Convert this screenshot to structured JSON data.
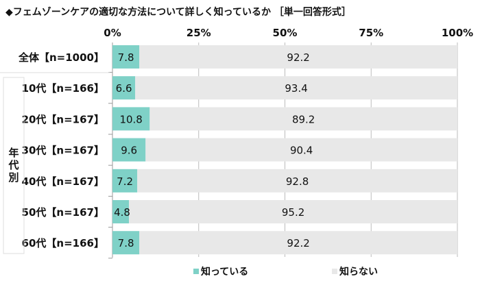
{
  "chart_data": {
    "type": "bar",
    "stacked": true,
    "orientation": "horizontal",
    "title": "◆フェムゾーンケアの適切な方法について詳しく知っているか ［単一回答形式］",
    "categories": [
      "全体【n=1000】",
      "10代【n=166】",
      "20代【n=167】",
      "30代【n=167】",
      "40代【n=167】",
      "50代【n=167】",
      "60代【n=166】"
    ],
    "group_label": "年代別",
    "series": [
      {
        "name": "知っている",
        "color": "#7fd1c7",
        "values": [
          7.8,
          6.6,
          10.8,
          9.6,
          7.2,
          4.8,
          7.8
        ]
      },
      {
        "name": "知らない",
        "color": "#e8e8e8",
        "values": [
          92.2,
          93.4,
          89.2,
          90.4,
          92.8,
          95.2,
          92.2
        ]
      }
    ],
    "xlim": [
      0,
      100
    ],
    "xticks": [
      "0%",
      "25%",
      "50%",
      "75%",
      "100%"
    ],
    "grid": true,
    "legend": "bottom"
  }
}
